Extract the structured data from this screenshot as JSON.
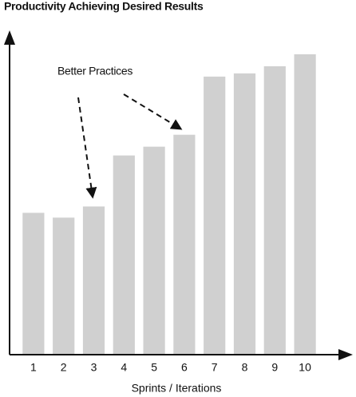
{
  "chart_data": {
    "type": "bar",
    "title": "Productivity Achieving Desired Results",
    "annotation": "Better Practices",
    "x_label": "Sprints / Iterations",
    "categories": [
      "1",
      "2",
      "3",
      "4",
      "5",
      "6",
      "7",
      "8",
      "9",
      "10"
    ],
    "values": [
      177,
      171,
      185,
      249,
      260,
      275,
      348,
      352,
      361,
      376
    ],
    "color": "#d0d0d0",
    "ylim": [
      0,
      400
    ]
  }
}
